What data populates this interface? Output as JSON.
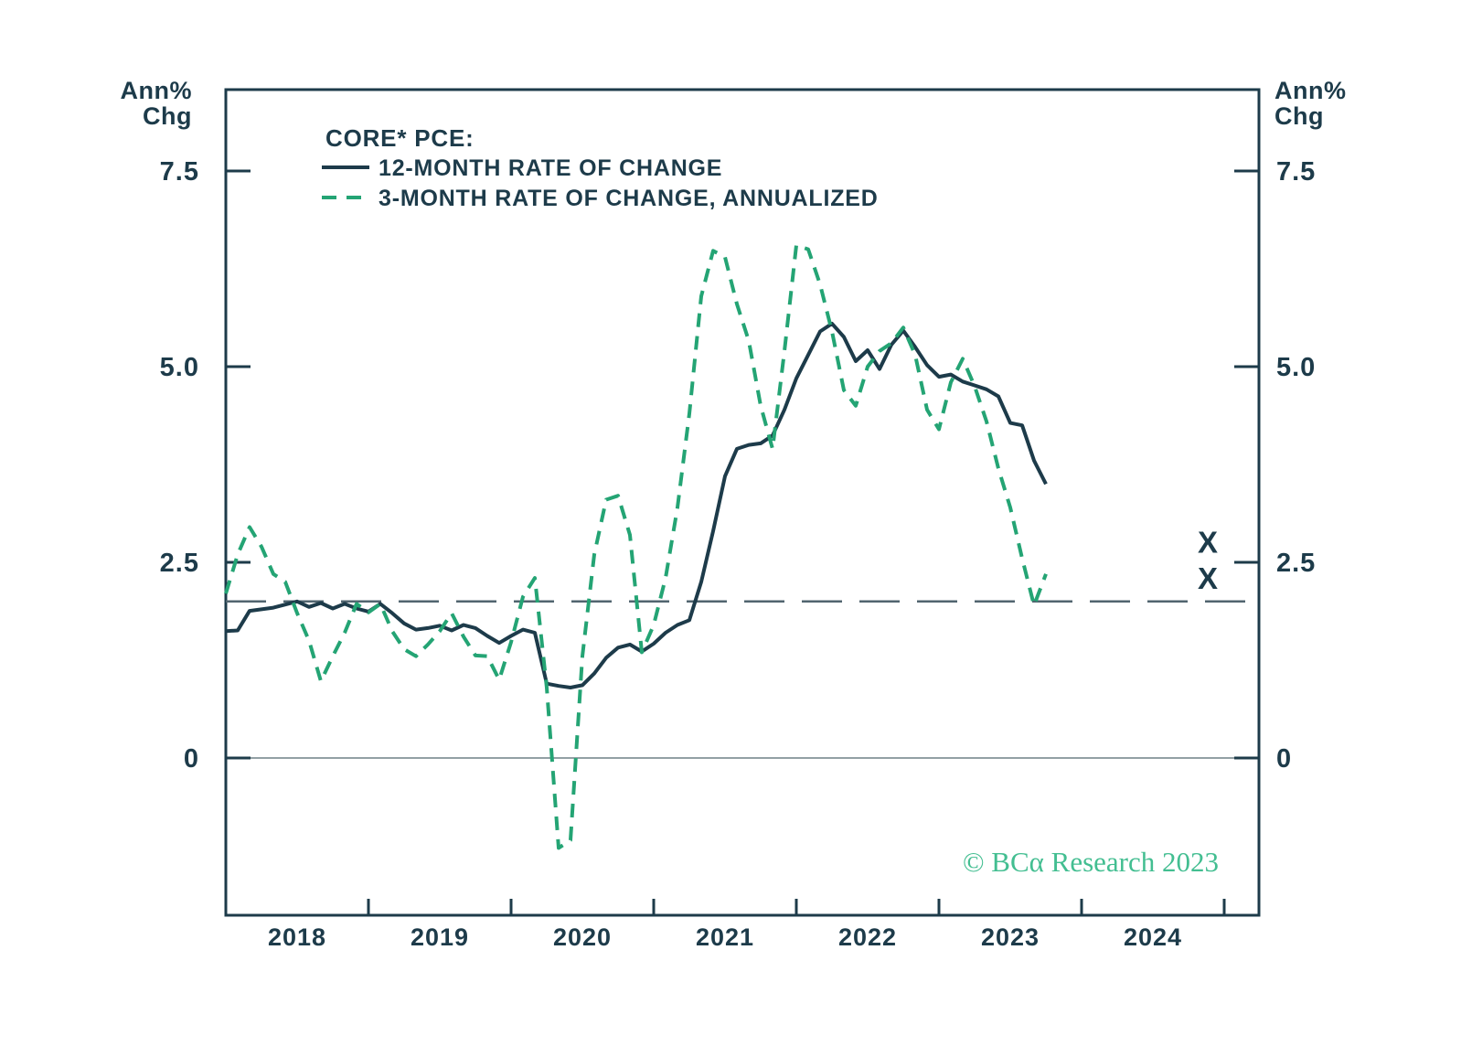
{
  "colors": {
    "dark": "#1d3b4a",
    "green": "#24a474",
    "zero_line": "#93a0a4",
    "target_line": "#51656f",
    "copyright_green": "#43be91",
    "background": "#ffffff"
  },
  "axis": {
    "unit_line1": "Ann%",
    "unit_line2": "Chg",
    "y_ticks": [
      {
        "value": 7.5,
        "label": "7.5"
      },
      {
        "value": 5.0,
        "label": "5.0"
      },
      {
        "value": 2.5,
        "label": "2.5"
      },
      {
        "value": 0.0,
        "label": "0"
      }
    ],
    "year_labels": [
      "2018",
      "2019",
      "2020",
      "2021",
      "2022",
      "2023",
      "2024"
    ]
  },
  "legend": {
    "title": "CORE* PCE:",
    "series1_label": "12-MONTH RATE OF CHANGE",
    "series2_label": "3-MONTH RATE OF CHANGE, ANNUALIZED"
  },
  "copyright": "© BCα Research 2023",
  "chart_data": {
    "type": "line",
    "title": "CORE* PCE: 12-month rate of change vs 3-month rate of change annualized",
    "ylabel": "Ann% Chg",
    "x_unit": "month",
    "x_start": "2018-01",
    "x_axis_years": [
      2018,
      2019,
      2020,
      2021,
      2022,
      2023,
      2024
    ],
    "ylim": [
      -2.0,
      8.55
    ],
    "grid": false,
    "legend_position": "top-left-inside",
    "reference_lines": [
      {
        "value": 2.0,
        "style": "long-dash",
        "meaning": "2% target"
      },
      {
        "value": 0.0,
        "style": "solid",
        "meaning": "zero line"
      }
    ],
    "series": [
      {
        "name": "12-MONTH RATE OF CHANGE",
        "style": "solid",
        "color": "#1d3b4a",
        "values": [
          1.62,
          1.63,
          1.88,
          1.9,
          1.92,
          1.96,
          2.0,
          1.93,
          1.98,
          1.91,
          1.97,
          1.91,
          1.87,
          1.97,
          1.85,
          1.72,
          1.64,
          1.66,
          1.69,
          1.63,
          1.7,
          1.66,
          1.56,
          1.47,
          1.56,
          1.64,
          1.6,
          0.95,
          0.92,
          0.9,
          0.93,
          1.08,
          1.28,
          1.41,
          1.45,
          1.36,
          1.46,
          1.6,
          1.7,
          1.76,
          2.25,
          2.9,
          3.6,
          3.95,
          4.0,
          4.02,
          4.12,
          4.45,
          4.85,
          5.15,
          5.45,
          5.55,
          5.38,
          5.07,
          5.21,
          4.97,
          5.28,
          5.46,
          5.25,
          5.02,
          4.87,
          4.9,
          4.81,
          4.76,
          4.71,
          4.62,
          4.28,
          4.25,
          3.8,
          3.5
        ]
      },
      {
        "name": "3-MONTH RATE OF CHANGE, ANNUALIZED",
        "style": "dashed",
        "color": "#24a474",
        "values": [
          2.1,
          2.6,
          2.95,
          2.7,
          2.35,
          2.25,
          1.85,
          1.5,
          0.98,
          1.3,
          1.6,
          1.97,
          1.86,
          1.97,
          1.62,
          1.39,
          1.3,
          1.45,
          1.62,
          1.85,
          1.55,
          1.31,
          1.3,
          1.0,
          1.48,
          2.06,
          2.3,
          0.9,
          -1.15,
          -1.05,
          1.3,
          2.6,
          3.3,
          3.35,
          2.85,
          1.35,
          1.7,
          2.3,
          3.2,
          4.4,
          5.9,
          6.48,
          6.4,
          5.8,
          5.33,
          4.5,
          3.95,
          5.2,
          6.55,
          6.5,
          6.05,
          5.45,
          4.7,
          4.5,
          5.0,
          5.2,
          5.3,
          5.5,
          5.15,
          4.45,
          4.2,
          4.8,
          5.1,
          4.75,
          4.3,
          3.7,
          3.2,
          2.55,
          1.95,
          2.35
        ]
      }
    ],
    "forecast_markers": [
      {
        "label": "X",
        "x": "2024-12",
        "value": 2.76
      },
      {
        "label": "X",
        "x": "2024-12",
        "value": 2.3
      }
    ]
  }
}
